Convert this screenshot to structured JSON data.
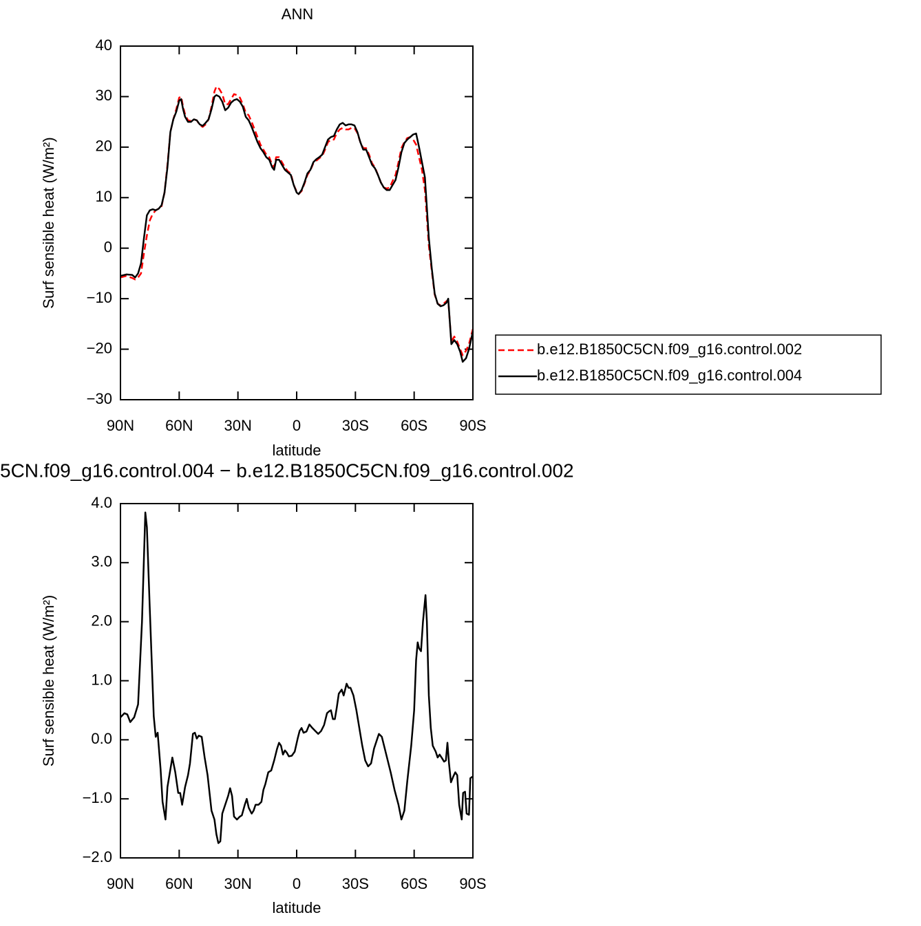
{
  "chart_data": [
    {
      "type": "line",
      "title": "ANN",
      "ylabel": "Surf sensible heat (W/m²)",
      "xlabel": "latitude",
      "legend": "outside-right",
      "xlim": [
        90,
        -90
      ],
      "xticks": [
        {
          "value": 90,
          "label": "90N"
        },
        {
          "value": 60,
          "label": "60N"
        },
        {
          "value": 30,
          "label": "30N"
        },
        0,
        {
          "value": -30,
          "label": "30S"
        },
        {
          "value": -60,
          "label": "60S"
        },
        {
          "value": -90,
          "label": "90S"
        }
      ],
      "ylim": [
        -30,
        40
      ],
      "yticks": [
        {
          "value": -30,
          "label": "−30"
        },
        {
          "value": -20,
          "label": "−20"
        },
        {
          "value": -10,
          "label": "−10"
        },
        0,
        10,
        20,
        30,
        40
      ],
      "x": [
        90,
        87,
        84,
        82.5,
        81,
        79.5,
        78,
        76.5,
        75,
        73.5,
        72,
        70.5,
        69,
        67.5,
        66,
        64.5,
        63,
        61.5,
        60,
        59,
        58,
        57,
        55.5,
        54,
        52.5,
        51,
        49.5,
        48,
        46.5,
        45,
        43.5,
        42,
        41,
        39.5,
        38,
        36.5,
        35,
        33.5,
        32,
        30.5,
        29,
        27.5,
        26,
        24.5,
        23,
        21.5,
        20,
        18.5,
        17,
        15.5,
        14,
        12.5,
        11.5,
        10.5,
        9,
        7.5,
        6,
        4.5,
        3,
        1.5,
        0,
        -1,
        -2.5,
        -4,
        -5.5,
        -7,
        -8.5,
        -10,
        -11.5,
        -13,
        -14.5,
        -16,
        -17.5,
        -19,
        -20.5,
        -22,
        -23.5,
        -25,
        -26.5,
        -28,
        -29.5,
        -31,
        -32.5,
        -34,
        -35.5,
        -37,
        -38.5,
        -40,
        -41.5,
        -43,
        -44.5,
        -46,
        -47.5,
        -49,
        -50.5,
        -52,
        -53.5,
        -55,
        -56.5,
        -58,
        -59.5,
        -61,
        -62.5,
        -64,
        -65.5,
        -66.5,
        -67.5,
        -69,
        -70.5,
        -72,
        -73.5,
        -75,
        -76.5,
        -77.4,
        -78.3,
        -79,
        -80.5,
        -82,
        -83.5,
        -84.8,
        -86.5,
        -88,
        -90
      ],
      "series": [
        {
          "name": "b.e12.B1850C5CN.f09_g16.control.002",
          "color": "#ff0000",
          "line_style": "dashed",
          "values": [
            -5.8,
            -5.5,
            -5.9,
            -6.2,
            -5.8,
            -5,
            -1,
            2.5,
            5.5,
            6.8,
            7.5,
            7.8,
            8.3,
            11,
            16.5,
            23,
            25.5,
            27.5,
            29.8,
            30,
            28,
            26.5,
            25.3,
            25.2,
            25.5,
            25.3,
            24.4,
            24,
            24.5,
            25.5,
            28,
            31,
            32,
            31.5,
            30.5,
            28.5,
            28.5,
            29.5,
            30.5,
            30.3,
            29.8,
            28.5,
            26.8,
            26.3,
            25,
            23.5,
            22,
            20.5,
            19.5,
            18.5,
            18,
            16.5,
            16,
            18,
            18,
            17,
            16,
            15.2,
            14.8,
            12.5,
            11.2,
            10.7,
            11.3,
            12.8,
            14.5,
            15.4,
            16.8,
            17.3,
            17.8,
            18.2,
            19.5,
            21,
            21.5,
            21.5,
            22.8,
            23.5,
            23.8,
            23.5,
            23.5,
            23.8,
            23.8,
            22.8,
            21,
            19.8,
            19.8,
            18.5,
            16.8,
            16,
            14.5,
            13,
            12,
            11.8,
            12,
            13.3,
            14.5,
            17,
            19.8,
            21,
            21.8,
            22,
            21.5,
            20.5,
            18,
            15.5,
            11.5,
            6,
            0.5,
            -4.5,
            -9.2,
            -11,
            -11.3,
            -11,
            -10.5,
            -10.3,
            -15,
            -18.5,
            -17.5,
            -18.5,
            -20,
            -21.2,
            -20.3,
            -19,
            -16
          ]
        },
        {
          "name": "b.e12.B1850C5CN.f09_g16.control.004",
          "color": "#000000",
          "line_style": "solid",
          "values": [
            -5.5,
            -5.2,
            -5.3,
            -5.8,
            -5,
            -3,
            2,
            6.5,
            7.5,
            7.7,
            7.5,
            7.8,
            8.5,
            11,
            16,
            23,
            25.5,
            27,
            29.2,
            29.5,
            27.5,
            26,
            25,
            25,
            25.5,
            25.3,
            24.5,
            24.2,
            24.8,
            25.5,
            27.5,
            30,
            30.3,
            30,
            29,
            27.3,
            27.8,
            28.8,
            29.3,
            29.5,
            29,
            28,
            26,
            25.3,
            24,
            22.5,
            21,
            19.8,
            19,
            18,
            17.5,
            16,
            15.5,
            17.5,
            17.5,
            16.5,
            15.5,
            15,
            14.5,
            12.5,
            11,
            10.7,
            11.5,
            13,
            14.8,
            15.5,
            17,
            17.6,
            18,
            18.5,
            20,
            21.5,
            22,
            22.2,
            23.5,
            24.5,
            24.8,
            24.3,
            24.5,
            24.5,
            24.3,
            23,
            21,
            19.5,
            19.5,
            18,
            16.5,
            15.8,
            14.5,
            13,
            12,
            11.5,
            11.5,
            12.5,
            13.5,
            16,
            19,
            20.8,
            21.5,
            22,
            22.5,
            22.7,
            20,
            17,
            14,
            8,
            2,
            -4,
            -9,
            -11,
            -11.5,
            -11.3,
            -10.8,
            -10,
            -15,
            -19,
            -18.2,
            -19,
            -20.5,
            -22.5,
            -21.8,
            -20,
            -16.5
          ]
        }
      ]
    },
    {
      "type": "line",
      "title": "5CN.f09_g16.control.004 − b.e12.B1850C5CN.f09_g16.control.002",
      "ylabel": "Surf sensible heat (W/m²)",
      "xlabel": "latitude",
      "xlim": [
        90,
        -90
      ],
      "xticks": [
        {
          "value": 90,
          "label": "90N"
        },
        {
          "value": 60,
          "label": "60N"
        },
        {
          "value": 30,
          "label": "30N"
        },
        0,
        {
          "value": -30,
          "label": "30S"
        },
        {
          "value": -60,
          "label": "60S"
        },
        {
          "value": -90,
          "label": "90S"
        }
      ],
      "ylim": [
        -2,
        4
      ],
      "yticks": [
        {
          "value": -2,
          "label": "−2.0"
        },
        {
          "value": -1,
          "label": "−1.0"
        },
        {
          "value": 0,
          "label": "0.0"
        },
        {
          "value": 1,
          "label": "1.0"
        },
        {
          "value": 2,
          "label": "2.0"
        },
        {
          "value": 3,
          "label": "3.0"
        },
        {
          "value": 4,
          "label": "4.0"
        }
      ],
      "x": [
        90,
        88,
        86.5,
        85,
        83,
        81,
        79,
        77.3,
        76.5,
        75,
        73,
        72,
        71,
        69.5,
        68.5,
        67,
        66,
        64.5,
        63.5,
        62,
        60.5,
        59.5,
        58.5,
        57,
        55.5,
        54.5,
        53,
        52,
        51,
        50,
        48.5,
        47,
        45.5,
        44.5,
        43.5,
        42,
        41,
        40,
        39,
        38,
        36.5,
        35,
        34,
        33,
        32,
        30.5,
        29,
        28,
        26.5,
        25.5,
        24.5,
        23,
        22,
        21,
        19.5,
        18,
        17,
        16,
        14.5,
        13,
        11.5,
        10,
        9,
        8,
        7,
        6,
        5,
        4,
        2.5,
        1,
        -0.5,
        -1.5,
        -2.5,
        -3.5,
        -5,
        -6.5,
        -8,
        -9.5,
        -11,
        -12.5,
        -14,
        -15.5,
        -16.5,
        -17.5,
        -18.5,
        -19.5,
        -20.5,
        -21.5,
        -23,
        -24,
        -25.5,
        -26.5,
        -27.5,
        -29,
        -30.5,
        -32,
        -33.5,
        -35,
        -36.5,
        -38,
        -39.5,
        -41,
        -42,
        -43.5,
        -45,
        -46.5,
        -48,
        -50,
        -52,
        -53.5,
        -55,
        -56.5,
        -58.5,
        -60,
        -61,
        -61.8,
        -62.5,
        -63.5,
        -64.5,
        -65.8,
        -66.5,
        -67.5,
        -68.5,
        -69.5,
        -71,
        -72,
        -73,
        -74,
        -75.3,
        -76.2,
        -77,
        -77.8,
        -78.8,
        -80,
        -81,
        -82,
        -83,
        -84.3,
        -85,
        -86,
        -86.8,
        -88,
        -88.7,
        -90
      ],
      "series": [
        {
          "color": "#000000",
          "line_style": "solid",
          "values": [
            0.38,
            0.45,
            0.43,
            0.3,
            0.38,
            0.6,
            2.0,
            3.85,
            3.6,
            2.2,
            0.4,
            0.05,
            0.12,
            -0.5,
            -1.05,
            -1.35,
            -0.8,
            -0.5,
            -0.3,
            -0.55,
            -0.9,
            -0.9,
            -1.1,
            -0.8,
            -0.6,
            -0.4,
            0.1,
            0.12,
            0.02,
            0.07,
            0.05,
            -0.3,
            -0.6,
            -0.9,
            -1.2,
            -1.35,
            -1.6,
            -1.75,
            -1.72,
            -1.25,
            -1.1,
            -0.95,
            -0.82,
            -0.95,
            -1.3,
            -1.35,
            -1.3,
            -1.28,
            -1.1,
            -1.0,
            -1.15,
            -1.25,
            -1.2,
            -1.1,
            -1.1,
            -1.05,
            -0.85,
            -0.75,
            -0.55,
            -0.52,
            -0.35,
            -0.15,
            -0.05,
            -0.1,
            -0.25,
            -0.18,
            -0.22,
            -0.28,
            -0.27,
            -0.2,
            0.02,
            0.15,
            0.2,
            0.12,
            0.14,
            0.26,
            0.2,
            0.15,
            0.1,
            0.15,
            0.25,
            0.45,
            0.48,
            0.5,
            0.35,
            0.35,
            0.55,
            0.78,
            0.85,
            0.75,
            0.95,
            0.88,
            0.88,
            0.75,
            0.5,
            0.2,
            -0.1,
            -0.35,
            -0.45,
            -0.4,
            -0.15,
            0.0,
            0.1,
            0.05,
            -0.15,
            -0.35,
            -0.55,
            -0.85,
            -1.1,
            -1.35,
            -1.2,
            -0.7,
            -0.1,
            0.5,
            1.35,
            1.65,
            1.55,
            1.5,
            2.0,
            2.45,
            2.0,
            0.75,
            0.2,
            -0.1,
            -0.2,
            -0.3,
            -0.25,
            -0.3,
            -0.37,
            -0.35,
            -0.05,
            -0.4,
            -0.72,
            -0.62,
            -0.55,
            -0.6,
            -1.1,
            -1.35,
            -0.9,
            -0.88,
            -1.25,
            -1.27,
            -0.65,
            -0.62
          ]
        }
      ]
    }
  ]
}
